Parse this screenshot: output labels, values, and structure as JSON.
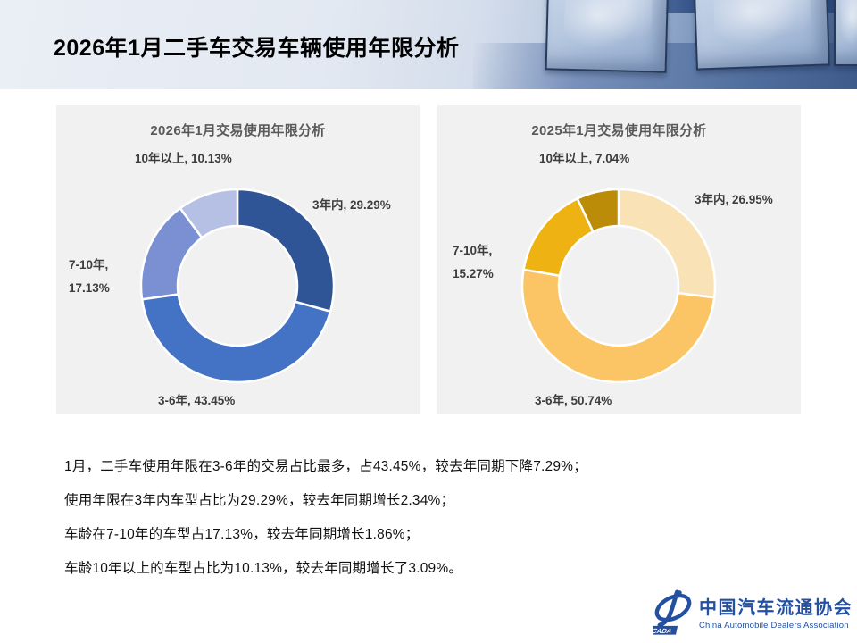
{
  "slide_title": "2026年1月二手车交易车辆使用年限分析",
  "chart_data": [
    {
      "type": "pie",
      "subtype": "donut",
      "title": "2026年1月交易使用年限分析",
      "categories": [
        "3年内",
        "3-6年",
        "7-10年",
        "10年以上"
      ],
      "values": [
        29.29,
        43.45,
        17.13,
        10.13
      ],
      "unit": "%",
      "colors": [
        "#2F5597",
        "#4472C4",
        "#7A90D2",
        "#B5C0E4"
      ],
      "start_angle_deg": 0,
      "direction": "clockwise",
      "legend": "none",
      "labels": {
        "under3": "3年内, 29.29%",
        "y3to6": "3-6年, 43.45%",
        "y7to10_l1": "7-10年,",
        "y7to10_l2": "17.13%",
        "over10": "10年以上, 10.13%"
      }
    },
    {
      "type": "pie",
      "subtype": "donut",
      "title": "2025年1月交易使用年限分析",
      "categories": [
        "3年内",
        "3-6年",
        "7-10年",
        "10年以上"
      ],
      "values": [
        26.95,
        50.74,
        15.27,
        7.04
      ],
      "unit": "%",
      "colors": [
        "#FAE2B7",
        "#FBC464",
        "#EEB312",
        "#BA8C08"
      ],
      "start_angle_deg": 0,
      "direction": "clockwise",
      "legend": "none",
      "labels": {
        "under3": "3年内, 26.95%",
        "y3to6": "3-6年, 50.74%",
        "y7to10_l1": "7-10年,",
        "y7to10_l2": "15.27%",
        "over10": "10年以上, 7.04%"
      }
    }
  ],
  "summary_lines": [
    "1月，二手车使用年限在3-6年的交易占比最多，占43.45%，较去年同期下降7.29%；",
    "使用年限在3年内车型占比为29.29%，较去年同期增长2.34%；",
    "车龄在7-10年的车型占17.13%，较去年同期增长1.86%；",
    "车龄10年以上的车型占比为10.13%，较去年同期增长了3.09%。"
  ],
  "footer_logo": {
    "acronym": "CADA",
    "name_cn": "中国汽车流通协会",
    "name_en": "China Automobile Dealers Association",
    "brand_color": "#2350A0"
  }
}
